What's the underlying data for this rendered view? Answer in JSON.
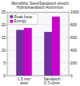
{
  "chart_data": {
    "type": "bar",
    "title": "Monolithic Steel/Sandwich stretch\nHybrid/sandwich Aluminium",
    "categories": [
      "1.5 mm\nsteel",
      "Sandwich\n0.7+2mm"
    ],
    "series": [
      {
        "name": "Peak force",
        "color": "#7030a0",
        "values": [
          18.0,
          17.2
        ]
      },
      {
        "name": "Energy",
        "color": "#cc00cc",
        "values": [
          750,
          930
        ],
        "axis": "y2"
      }
    ],
    "ylim": [
      0,
      25
    ],
    "yticks": [
      0,
      5,
      10,
      15,
      20,
      25
    ],
    "y2lim": [
      0,
      1000
    ],
    "y2ticks": [
      0,
      200,
      400,
      600,
      800,
      1000
    ],
    "grid": true,
    "legend": "upper left"
  }
}
